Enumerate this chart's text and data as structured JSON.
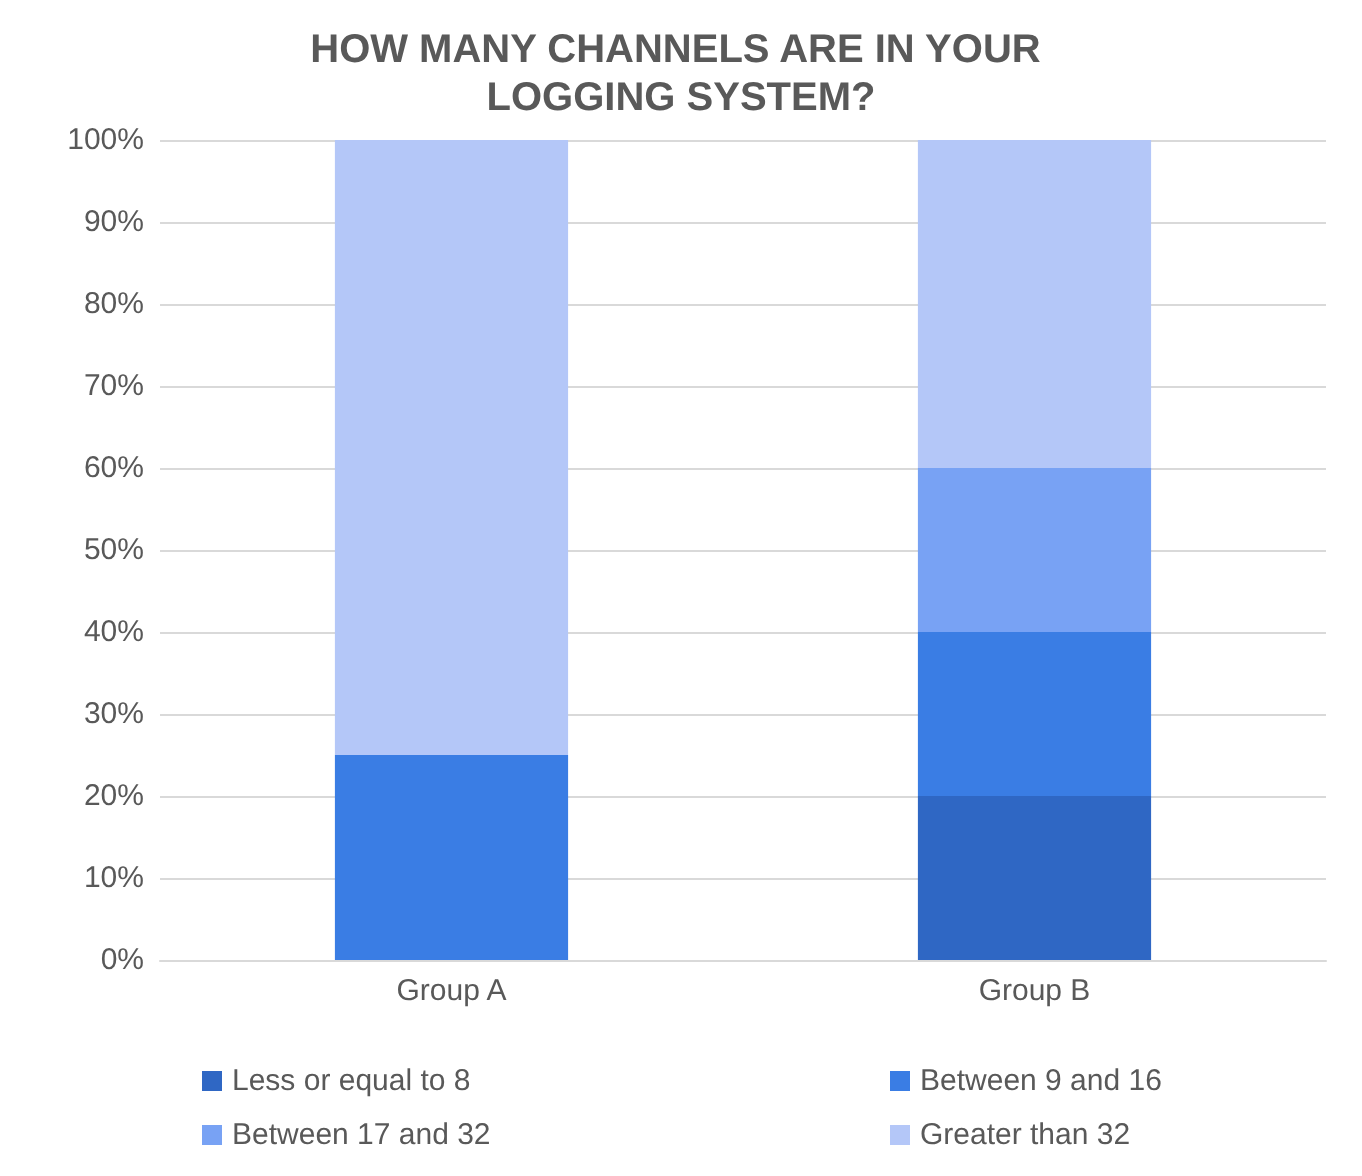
{
  "chart_data": {
    "type": "bar",
    "title": "HOW MANY CHANNELS ARE IN YOUR LOGGING SYSTEM?",
    "stacked": true,
    "categories": [
      "Group A",
      "Group B"
    ],
    "series": [
      {
        "name": "Less or equal to 8",
        "color": "#2f67c4",
        "values": [
          0,
          20
        ]
      },
      {
        "name": "Between 9 and 16",
        "color": "#3a7de4",
        "values": [
          25,
          20
        ]
      },
      {
        "name": "Between 17 and 32",
        "color": "#78a2f4",
        "values": [
          0,
          20
        ]
      },
      {
        "name": "Greater than 32",
        "color": "#b4c7f8",
        "values": [
          75,
          40
        ]
      }
    ],
    "ylim": [
      0,
      100
    ],
    "yticks": [
      {
        "value": 0,
        "label": "0%"
      },
      {
        "value": 10,
        "label": "10%"
      },
      {
        "value": 20,
        "label": "20%"
      },
      {
        "value": 30,
        "label": "30%"
      },
      {
        "value": 40,
        "label": "40%"
      },
      {
        "value": 50,
        "label": "50%"
      },
      {
        "value": 60,
        "label": "60%"
      },
      {
        "value": 70,
        "label": "70%"
      },
      {
        "value": 80,
        "label": "80%"
      },
      {
        "value": 90,
        "label": "90%"
      },
      {
        "value": 100,
        "label": "100%"
      }
    ],
    "grid": "y",
    "legend": "bottom"
  }
}
